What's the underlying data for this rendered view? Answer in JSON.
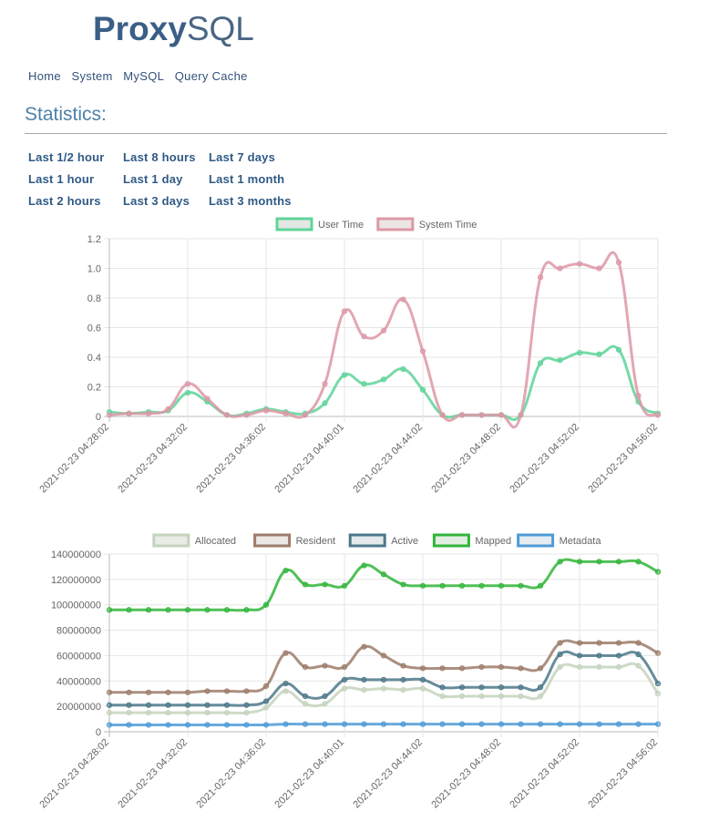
{
  "logo": {
    "bold": "Proxy",
    "light": "SQL"
  },
  "nav": [
    "Home",
    "System",
    "MySQL",
    "Query Cache"
  ],
  "heading": "Statistics:",
  "ranges": [
    [
      "Last 1/2 hour",
      "Last 1 hour",
      "Last 2 hours"
    ],
    [
      "Last 8 hours",
      "Last 1 day",
      "Last 3 days"
    ],
    [
      "Last 7 days",
      "Last 1 month",
      "Last 3 months"
    ]
  ],
  "chart_data": [
    {
      "type": "line",
      "x": [
        "2021-02-23 04:28:02",
        "2021-02-23 04:29:02",
        "2021-02-23 04:30:02",
        "2021-02-23 04:31:02",
        "2021-02-23 04:32:02",
        "2021-02-23 04:33:02",
        "2021-02-23 04:34:02",
        "2021-02-23 04:35:02",
        "2021-02-23 04:36:02",
        "2021-02-23 04:37:02",
        "2021-02-23 04:38:02",
        "2021-02-23 04:39:02",
        "2021-02-23 04:40:02",
        "2021-02-23 04:41:02",
        "2021-02-23 04:42:02",
        "2021-02-23 04:43:02",
        "2021-02-23 04:44:02",
        "2021-02-23 04:45:02",
        "2021-02-23 04:46:02",
        "2021-02-23 04:47:02",
        "2021-02-23 04:48:02",
        "2021-02-23 04:49:02",
        "2021-02-23 04:50:02",
        "2021-02-23 04:51:02",
        "2021-02-23 04:52:02",
        "2021-02-23 04:53:02",
        "2021-02-23 04:54:02",
        "2021-02-23 04:55:02",
        "2021-02-23 04:56:02"
      ],
      "xticks": [
        "2021-02-23 04:28:02",
        "2021-02-23 04:32:02",
        "2021-02-23 04:36:02",
        "2021-02-23 04:40:01",
        "2021-02-23 04:44:02",
        "2021-02-23 04:48:02",
        "2021-02-23 04:52:02",
        "2021-02-23 04:56:02"
      ],
      "ylim": [
        0,
        1.2
      ],
      "yticks": [
        "0",
        "0.2",
        "0.4",
        "0.6",
        "0.8",
        "1.0",
        "1.2"
      ],
      "grid": true,
      "legend": "top-center",
      "series": [
        {
          "name": "User Time",
          "color": "#5fd49a",
          "fill": "#e3e8e4",
          "values": [
            0.03,
            0.02,
            0.03,
            0.04,
            0.16,
            0.1,
            0.01,
            0.02,
            0.05,
            0.03,
            0.02,
            0.09,
            0.28,
            0.22,
            0.25,
            0.32,
            0.18,
            0.01,
            0.01,
            0.01,
            0.01,
            0.01,
            0.36,
            0.38,
            0.43,
            0.42,
            0.45,
            0.1,
            0.02
          ]
        },
        {
          "name": "System Time",
          "color": "#dd98a6",
          "fill": "#ece5e6",
          "values": [
            0.01,
            0.02,
            0.02,
            0.05,
            0.22,
            0.12,
            0.01,
            0.01,
            0.04,
            0.02,
            0.01,
            0.22,
            0.71,
            0.54,
            0.58,
            0.79,
            0.44,
            0.01,
            0.01,
            0.01,
            0.01,
            0.01,
            0.94,
            1.0,
            1.03,
            1.0,
            1.04,
            0.14,
            0.01
          ]
        }
      ]
    },
    {
      "type": "line",
      "x": [
        "2021-02-23 04:28:02",
        "2021-02-23 04:29:02",
        "2021-02-23 04:30:02",
        "2021-02-23 04:31:02",
        "2021-02-23 04:32:02",
        "2021-02-23 04:33:02",
        "2021-02-23 04:34:02",
        "2021-02-23 04:35:02",
        "2021-02-23 04:36:02",
        "2021-02-23 04:37:02",
        "2021-02-23 04:38:02",
        "2021-02-23 04:39:02",
        "2021-02-23 04:40:02",
        "2021-02-23 04:41:02",
        "2021-02-23 04:42:02",
        "2021-02-23 04:43:02",
        "2021-02-23 04:44:02",
        "2021-02-23 04:45:02",
        "2021-02-23 04:46:02",
        "2021-02-23 04:47:02",
        "2021-02-23 04:48:02",
        "2021-02-23 04:49:02",
        "2021-02-23 04:50:02",
        "2021-02-23 04:51:02",
        "2021-02-23 04:52:02",
        "2021-02-23 04:53:02",
        "2021-02-23 04:54:02",
        "2021-02-23 04:55:02",
        "2021-02-23 04:56:02"
      ],
      "xticks": [
        "2021-02-23 04:28:02",
        "2021-02-23 04:32:02",
        "2021-02-23 04:36:02",
        "2021-02-23 04:40:01",
        "2021-02-23 04:44:02",
        "2021-02-23 04:48:02",
        "2021-02-23 04:52:02",
        "2021-02-23 04:56:02"
      ],
      "ylim": [
        0,
        140000000
      ],
      "yticks": [
        "0",
        "20000000",
        "40000000",
        "60000000",
        "80000000",
        "100000000",
        "120000000",
        "140000000"
      ],
      "grid": true,
      "legend": "top-center",
      "series": [
        {
          "name": "Allocated",
          "color": "#c4d3be",
          "fill": "#e8ebe6",
          "values": [
            15000000,
            15000000,
            15000000,
            15000000,
            15000000,
            15000000,
            15000000,
            15000000,
            19000000,
            32000000,
            22000000,
            22000000,
            34000000,
            33000000,
            34000000,
            33000000,
            34000000,
            28000000,
            28000000,
            28000000,
            28000000,
            28000000,
            28000000,
            51000000,
            51000000,
            51000000,
            51000000,
            52000000,
            30000000
          ]
        },
        {
          "name": "Resident",
          "color": "#9c7c6a",
          "fill": "#ece8e5",
          "values": [
            31000000,
            31000000,
            31000000,
            31000000,
            31000000,
            32000000,
            32000000,
            32000000,
            36000000,
            62000000,
            51000000,
            52000000,
            51000000,
            67000000,
            60000000,
            52000000,
            50000000,
            50000000,
            50000000,
            51000000,
            51000000,
            50000000,
            50000000,
            70000000,
            70000000,
            70000000,
            70000000,
            70000000,
            62000000
          ]
        },
        {
          "name": "Active",
          "color": "#4c788a",
          "fill": "#e4e9eb",
          "values": [
            21000000,
            21000000,
            21000000,
            21000000,
            21000000,
            21000000,
            21000000,
            21000000,
            24000000,
            38000000,
            28000000,
            28000000,
            41000000,
            41000000,
            41000000,
            41000000,
            41000000,
            35000000,
            35000000,
            35000000,
            35000000,
            35000000,
            35000000,
            61000000,
            60000000,
            60000000,
            60000000,
            61000000,
            38000000
          ]
        },
        {
          "name": "Mapped",
          "color": "#31b53a",
          "fill": "#e3eee3",
          "values": [
            96000000,
            96000000,
            96000000,
            96000000,
            96000000,
            96000000,
            96000000,
            96000000,
            100000000,
            127000000,
            116000000,
            116000000,
            115000000,
            131000000,
            124000000,
            116000000,
            115000000,
            115000000,
            115000000,
            115000000,
            115000000,
            115000000,
            115000000,
            134000000,
            134000000,
            134000000,
            134000000,
            134000000,
            126000000
          ]
        },
        {
          "name": "Metadata",
          "color": "#4f9bd6",
          "fill": "#e5ecf2",
          "values": [
            5400000,
            5400000,
            5400000,
            5400000,
            5400000,
            5400000,
            5400000,
            5400000,
            5400000,
            6000000,
            6000000,
            6000000,
            6000000,
            6000000,
            6000000,
            6000000,
            6000000,
            6000000,
            6000000,
            6000000,
            6000000,
            6000000,
            6000000,
            6000000,
            6000000,
            6000000,
            6000000,
            6000000,
            6000000
          ]
        }
      ]
    }
  ]
}
